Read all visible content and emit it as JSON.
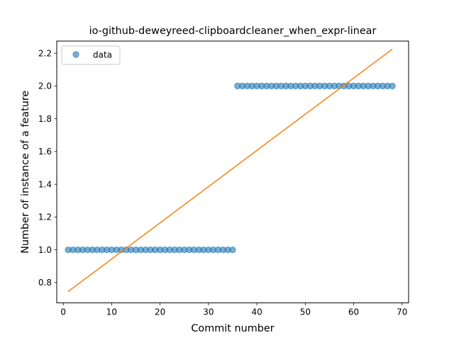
{
  "chart_data": {
    "type": "scatter",
    "title": "io-github-deweyreed-clipboardcleaner_when_expr-linear",
    "xlabel": "Commit number",
    "ylabel": "Number of instance of a feature",
    "xlim": [
      -1.35,
      71.35
    ],
    "ylim": [
      0.676,
      2.274
    ],
    "x_ticks": [
      0,
      10,
      20,
      30,
      40,
      50,
      60,
      70
    ],
    "y_ticks": [
      0.8,
      1.0,
      1.2,
      1.4,
      1.6,
      1.8,
      2.0,
      2.2
    ],
    "x_tick_labels": [
      "0",
      "10",
      "20",
      "30",
      "40",
      "50",
      "60",
      "70"
    ],
    "y_tick_labels": [
      "0.8",
      "1.0",
      "1.2",
      "1.4",
      "1.6",
      "1.8",
      "2.0",
      "2.2"
    ],
    "legend": {
      "placement": "top-left",
      "entries": [
        "data"
      ]
    },
    "grid": false,
    "series": [
      {
        "name": "data",
        "kind": "scatter",
        "color": "#1f77b4",
        "x": [
          1,
          2,
          3,
          4,
          5,
          6,
          7,
          8,
          9,
          10,
          11,
          12,
          13,
          14,
          15,
          16,
          17,
          18,
          19,
          20,
          21,
          22,
          23,
          24,
          25,
          26,
          27,
          28,
          29,
          30,
          31,
          32,
          33,
          34,
          35,
          36,
          37,
          38,
          39,
          40,
          41,
          42,
          43,
          44,
          45,
          46,
          47,
          48,
          49,
          50,
          51,
          52,
          53,
          54,
          55,
          56,
          57,
          58,
          59,
          60,
          61,
          62,
          63,
          64,
          65,
          66,
          67,
          68
        ],
        "y": [
          1,
          1,
          1,
          1,
          1,
          1,
          1,
          1,
          1,
          1,
          1,
          1,
          1,
          1,
          1,
          1,
          1,
          1,
          1,
          1,
          1,
          1,
          1,
          1,
          1,
          1,
          1,
          1,
          1,
          1,
          1,
          1,
          1,
          1,
          1,
          2,
          2,
          2,
          2,
          2,
          2,
          2,
          2,
          2,
          2,
          2,
          2,
          2,
          2,
          2,
          2,
          2,
          2,
          2,
          2,
          2,
          2,
          2,
          2,
          2,
          2,
          2,
          2,
          2,
          2,
          2,
          2,
          2
        ]
      },
      {
        "kind": "line",
        "color": "#ff7f0e",
        "x": [
          1,
          68
        ],
        "y": [
          0.745,
          2.225
        ]
      }
    ]
  }
}
